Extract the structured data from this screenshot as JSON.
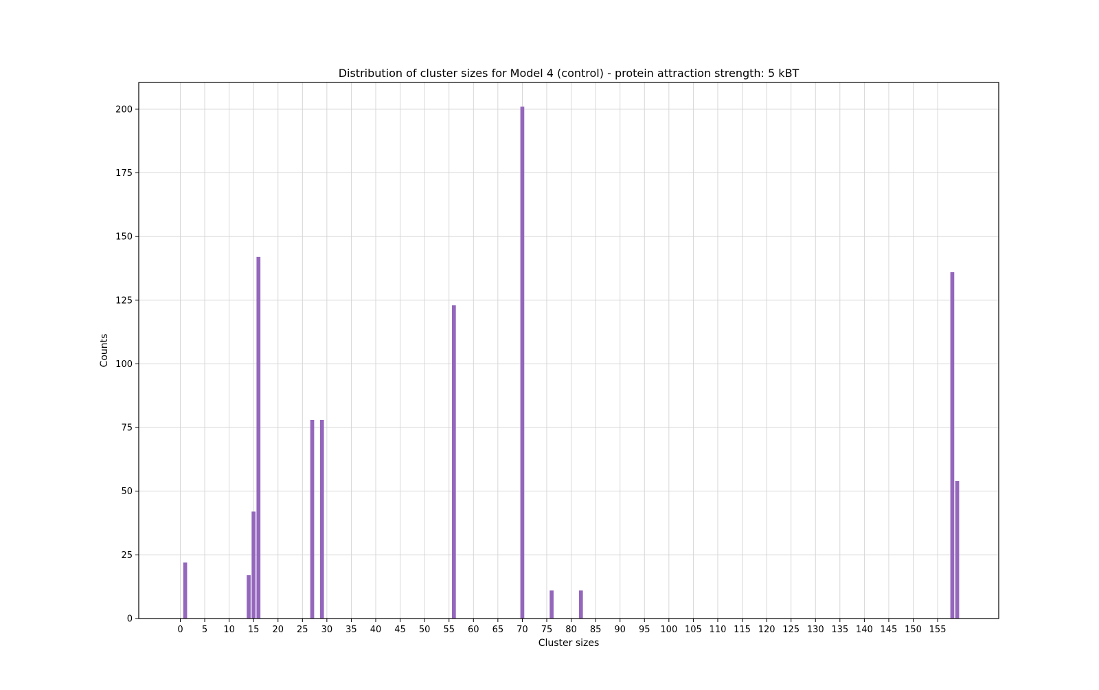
{
  "chart_data": {
    "type": "bar",
    "title": "Distribution of cluster sizes for Model 4 (control) - protein attraction strength: 5 kBT",
    "xlabel": "Cluster sizes",
    "ylabel": "Counts",
    "bar_color": "#9467bd",
    "grid_color": "#d3d3d3",
    "grid": true,
    "xlim": [
      -8.5,
      167.5
    ],
    "ylim": [
      0,
      210.5
    ],
    "x_ticks": [
      0,
      5,
      10,
      15,
      20,
      25,
      30,
      35,
      40,
      45,
      50,
      55,
      60,
      65,
      70,
      75,
      80,
      85,
      90,
      95,
      100,
      105,
      110,
      115,
      120,
      125,
      130,
      135,
      140,
      145,
      150,
      155
    ],
    "y_ticks": [
      0,
      25,
      50,
      75,
      100,
      125,
      150,
      175,
      200
    ],
    "x": [
      1,
      14,
      15,
      16,
      27,
      29,
      56,
      70,
      76,
      82,
      158,
      159
    ],
    "values": [
      22,
      17,
      42,
      142,
      78,
      78,
      123,
      201,
      11,
      11,
      136,
      54
    ]
  }
}
